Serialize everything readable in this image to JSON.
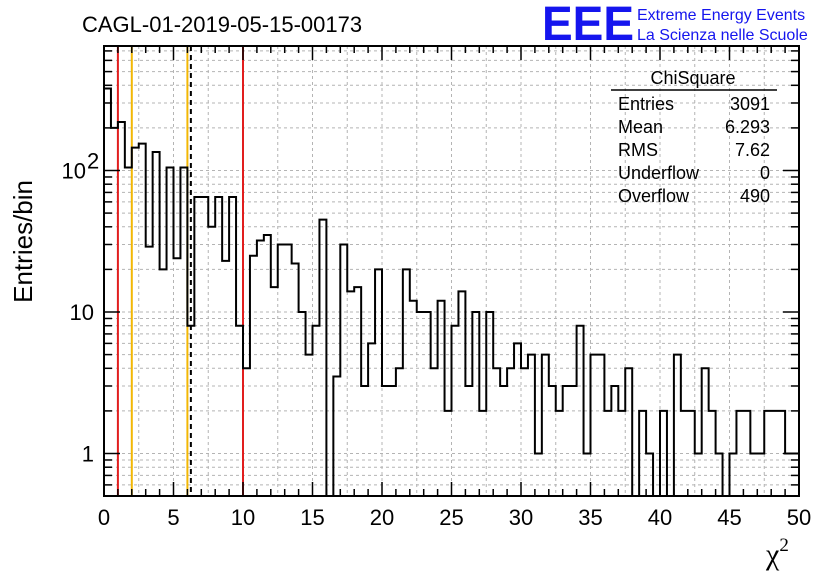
{
  "chart_data": {
    "type": "bar",
    "title": "CAGL-01-2019-05-15-00173",
    "xlabel": "χ",
    "xlabel_superscript": "2",
    "ylabel": "Entries/bin",
    "xlim": [
      0,
      50
    ],
    "ylim": [
      0.5,
      700
    ],
    "y_scale": "log",
    "grid": true,
    "bin_width": 0.5,
    "x_ticks": [
      "0",
      "5",
      "10",
      "15",
      "20",
      "25",
      "30",
      "35",
      "40",
      "45",
      "50"
    ],
    "y_ticks": [
      {
        "value": 1,
        "label": "1"
      },
      {
        "value": 10,
        "label": "10"
      },
      {
        "value": 100,
        "label": "10",
        "exponent": "2"
      }
    ],
    "values": [
      380,
      200,
      220,
      105,
      145,
      155,
      29,
      135,
      20,
      105,
      24,
      105,
      8,
      65,
      65,
      40,
      65,
      23,
      65,
      8,
      4,
      25,
      32,
      35,
      15,
      30,
      30,
      22,
      10,
      5,
      8,
      45,
      0,
      3.5,
      30,
      14,
      15,
      3,
      6,
      20,
      3,
      3,
      4,
      20,
      12,
      10,
      10,
      4,
      12,
      2,
      8,
      14,
      3,
      10,
      2,
      10,
      4,
      3,
      4,
      6,
      4,
      5,
      1,
      5,
      3,
      2,
      3,
      3,
      8,
      1,
      5,
      5,
      2,
      3,
      2,
      4,
      0,
      2,
      1,
      0,
      2,
      0,
      5,
      2,
      2,
      1,
      4,
      2,
      1,
      0,
      1,
      2,
      2,
      1,
      1,
      2,
      2,
      2,
      1,
      1
    ],
    "vlines": [
      {
        "x": 1.0,
        "color": "#e11e1e",
        "style": "solid"
      },
      {
        "x": 2.0,
        "color": "#f2b705",
        "style": "solid"
      },
      {
        "x": 6.0,
        "color": "#f2b705",
        "style": "solid"
      },
      {
        "x": 6.25,
        "color": "#000000",
        "style": "dashed"
      },
      {
        "x": 10.0,
        "color": "#e11e1e",
        "style": "solid"
      }
    ],
    "stats": {
      "name": "ChiSquare",
      "rows": [
        {
          "label": "Entries",
          "value": "3091"
        },
        {
          "label": "Mean",
          "value": "6.293"
        },
        {
          "label": "RMS",
          "value": "7.62"
        },
        {
          "label": "Underflow",
          "value": "0"
        },
        {
          "label": "Overflow",
          "value": "490"
        }
      ]
    }
  },
  "logo": {
    "big": "EEE",
    "line1": "Extreme Energy Events",
    "line2": "La Scienza nelle Scuole",
    "color": "#1515ee"
  }
}
